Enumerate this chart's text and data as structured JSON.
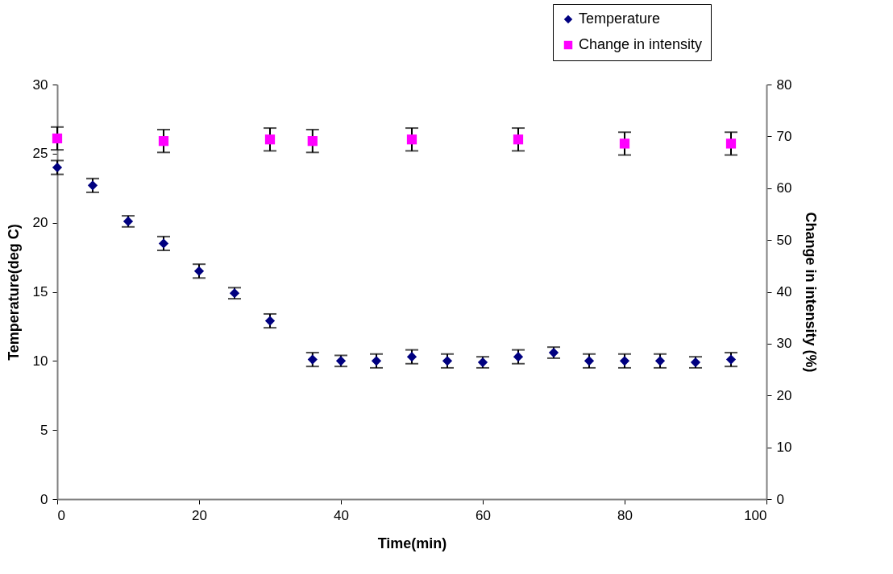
{
  "chart_data": {
    "type": "scatter",
    "xlabel": "Time(min)",
    "ylabel": "Temperature(deg C)",
    "y2label": "Change in intensity (%)",
    "xlim": [
      0,
      100
    ],
    "xticks": [
      0,
      20,
      40,
      60,
      80,
      100
    ],
    "ylim": [
      0,
      30
    ],
    "yticks": [
      0,
      5,
      10,
      15,
      20,
      25,
      30
    ],
    "y2lim": [
      0,
      80
    ],
    "y2ticks": [
      0,
      10,
      20,
      30,
      40,
      50,
      60,
      70,
      80
    ],
    "grid": false,
    "legend": "top right",
    "series": [
      {
        "name": "Temperature",
        "color": "#000080",
        "marker": "diamond",
        "x": [
          0,
          5,
          10,
          15,
          20,
          25,
          30,
          36,
          40,
          45,
          50,
          55,
          60,
          65,
          70,
          75,
          80,
          85,
          90,
          95
        ],
        "values": [
          24.0,
          22.7,
          20.1,
          18.5,
          16.5,
          14.9,
          12.9,
          10.1,
          10.0,
          10.0,
          10.3,
          10.0,
          9.9,
          10.3,
          10.6,
          10.0,
          10.0,
          10.0,
          9.9,
          10.1
        ],
        "errors": [
          0.5,
          0.5,
          0.4,
          0.5,
          0.5,
          0.4,
          0.5,
          0.5,
          0.4,
          0.5,
          0.5,
          0.5,
          0.4,
          0.5,
          0.4,
          0.5,
          0.5,
          0.5,
          0.4,
          0.5
        ]
      },
      {
        "name": "Change in intensity",
        "color": "#ff00ff",
        "marker": "square",
        "axis": "y2",
        "x": [
          0,
          15,
          30,
          36,
          50,
          65,
          80,
          95
        ],
        "values": [
          69.6,
          69.1,
          69.4,
          69.1,
          69.4,
          69.4,
          68.6,
          68.6
        ],
        "errors": [
          2.2,
          2.2,
          2.2,
          2.2,
          2.2,
          2.2,
          2.2,
          2.2
        ]
      }
    ]
  }
}
